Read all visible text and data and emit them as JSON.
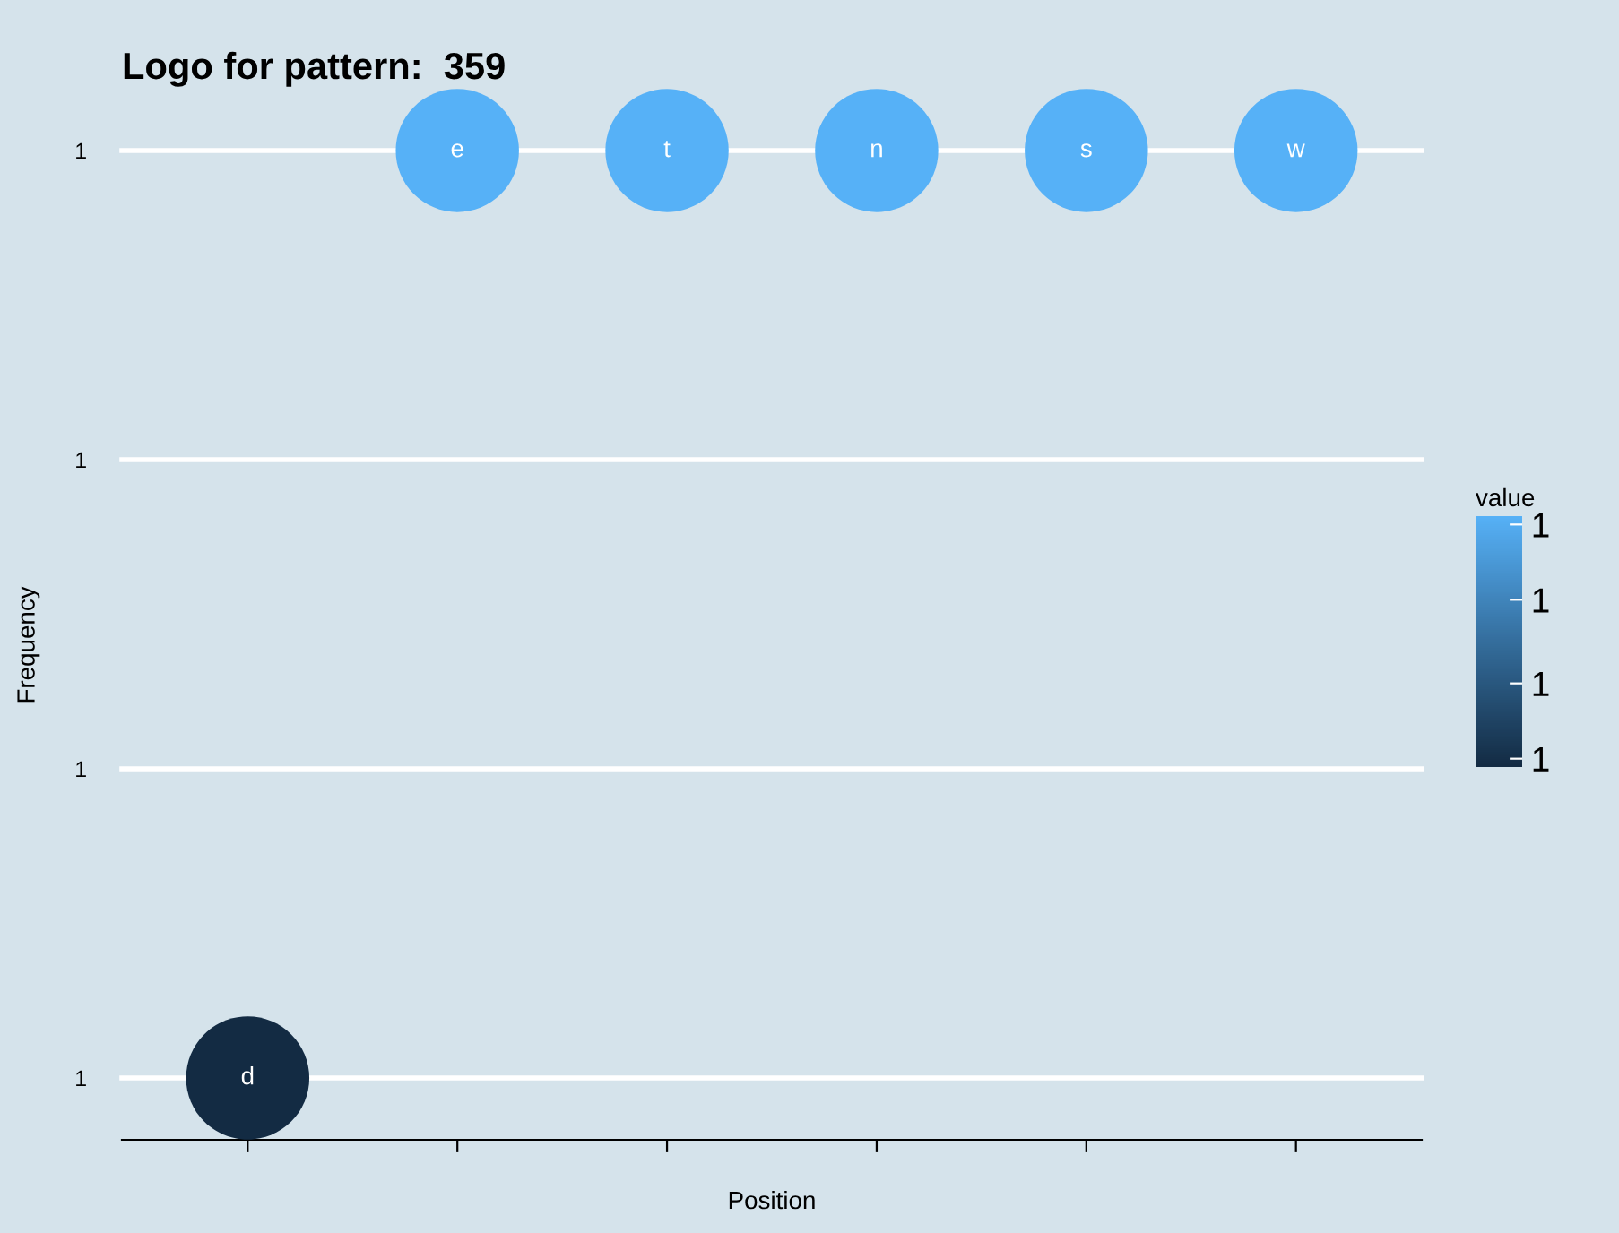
{
  "chart_data": {
    "type": "scatter",
    "title": "Logo for pattern:  359",
    "xlabel": "Position",
    "ylabel": "Frequency",
    "clabel": "value",
    "categories": [
      null,
      null,
      null,
      null,
      null,
      null
    ],
    "series": [
      {
        "name": "d",
        "color": "#132b43",
        "values": [
          0.9997,
          null,
          null,
          null,
          null,
          null
        ],
        "cvalues": [
          0.9997,
          null,
          null,
          null,
          null,
          null
        ]
      },
      {
        "name": "e",
        "color": "#56b1f7",
        "values": [
          null,
          1.0,
          null,
          null,
          null,
          null
        ],
        "cvalues": [
          null,
          1.0,
          null,
          null,
          null,
          null
        ]
      },
      {
        "name": "t",
        "color": "#56b1f7",
        "values": [
          null,
          null,
          1.0,
          null,
          null,
          null
        ],
        "cvalues": [
          null,
          null,
          1.0,
          null,
          null,
          null
        ]
      },
      {
        "name": "n",
        "color": "#56b1f7",
        "values": [
          null,
          null,
          null,
          1.0,
          null,
          null
        ],
        "cvalues": [
          null,
          null,
          null,
          1.0,
          null,
          null
        ]
      },
      {
        "name": "s",
        "color": "#56b1f7",
        "values": [
          null,
          null,
          null,
          null,
          1.0,
          null
        ],
        "cvalues": [
          null,
          null,
          null,
          null,
          1.0,
          null
        ]
      },
      {
        "name": "w",
        "color": "#56b1f7",
        "values": [
          null,
          null,
          null,
          null,
          null,
          1.0
        ],
        "cvalues": [
          null,
          null,
          null,
          null,
          null,
          1.0
        ]
      }
    ],
    "ylim": [
      0.99968,
      1.0
    ],
    "yticks": [
      {
        "value": 0.9997,
        "label": "1"
      },
      {
        "value": 0.9998,
        "label": "1"
      },
      {
        "value": 0.9999,
        "label": "1"
      },
      {
        "value": 1.0,
        "label": "1"
      }
    ],
    "clim": [
      0.9997,
      1.0
    ],
    "cticks": [
      {
        "value": 0.99971,
        "label": "1"
      },
      {
        "value": 0.9998,
        "label": "1"
      },
      {
        "value": 0.9999,
        "label": "1"
      },
      {
        "value": 0.99999,
        "label": "1"
      }
    ],
    "marker": "circle",
    "grid": "y",
    "legend": false
  }
}
